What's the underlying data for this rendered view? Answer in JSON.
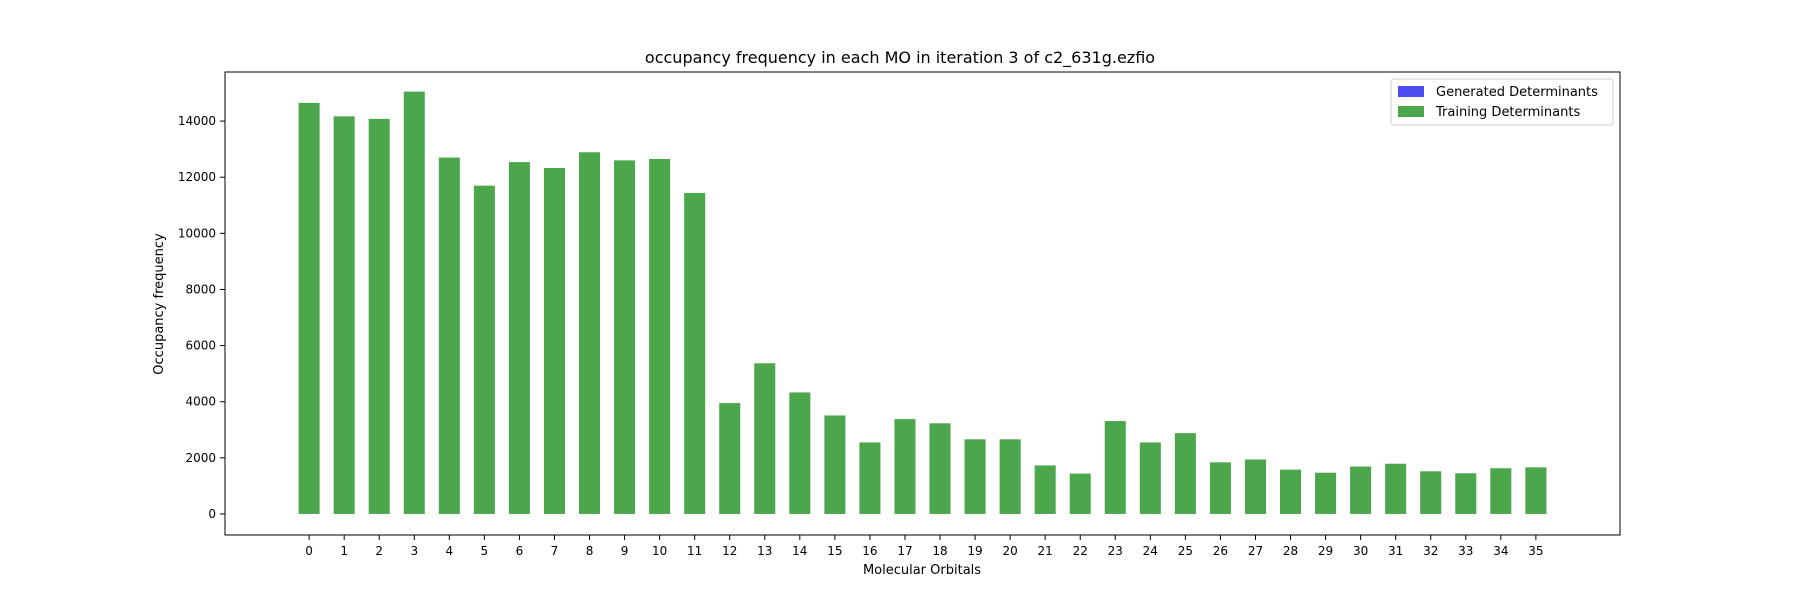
{
  "chart_data": {
    "type": "bar",
    "title": "occupancy frequency in each MO in iteration 3 of c2_631g.ezfio",
    "xlabel": "Molecular Orbitals",
    "ylabel": "Occupancy frequency",
    "ylim": [
      -750,
      15750
    ],
    "xlim": [
      -2.4,
      37.4
    ],
    "yticks": [
      0,
      2000,
      4000,
      6000,
      8000,
      10000,
      12000,
      14000
    ],
    "grid": false,
    "legend_position": "top-right",
    "categories": [
      "0",
      "1",
      "2",
      "3",
      "4",
      "5",
      "6",
      "7",
      "8",
      "9",
      "10",
      "11",
      "12",
      "13",
      "14",
      "15",
      "16",
      "17",
      "18",
      "19",
      "20",
      "21",
      "22",
      "23",
      "24",
      "25",
      "26",
      "27",
      "28",
      "29",
      "30",
      "31",
      "32",
      "33",
      "34",
      "35"
    ],
    "series": [
      {
        "name": "Generated Determinants",
        "color": "#4c4cf0",
        "values": [
          0,
          0,
          0,
          0,
          0,
          0,
          0,
          0,
          0,
          0,
          0,
          0,
          0,
          0,
          0,
          0,
          0,
          0,
          0,
          0,
          0,
          0,
          0,
          0,
          0,
          0,
          0,
          0,
          0,
          0,
          0,
          0,
          0,
          0,
          0,
          0
        ]
      },
      {
        "name": "Training Determinants",
        "color": "#4ca64c",
        "values": [
          14650,
          14170,
          14080,
          15050,
          12700,
          11700,
          12540,
          12330,
          12890,
          12600,
          12650,
          11440,
          3950,
          5370,
          4330,
          3510,
          2550,
          3380,
          3230,
          2660,
          2660,
          1730,
          1440,
          3310,
          2550,
          2880,
          1840,
          1940,
          1580,
          1470,
          1690,
          1790,
          1520,
          1450,
          1630,
          1660
        ]
      }
    ]
  }
}
